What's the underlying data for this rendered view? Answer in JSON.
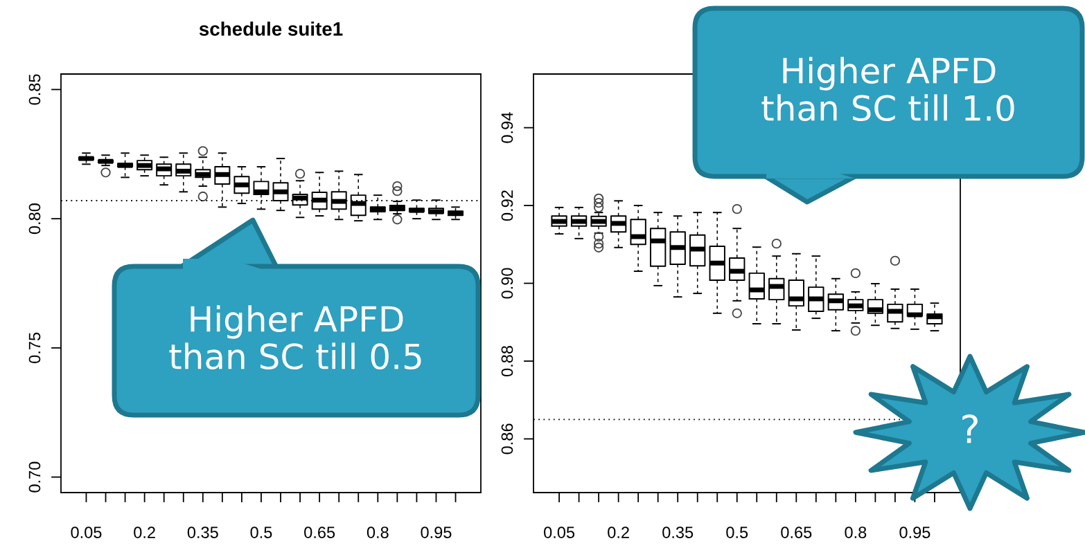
{
  "chart_data": [
    {
      "type": "box",
      "title": "schedule suite1",
      "categories": [
        "0.05",
        null,
        null,
        "0.2",
        null,
        null,
        "0.35",
        null,
        null,
        "0.5",
        null,
        null,
        "0.65",
        null,
        null,
        "0.8",
        null,
        null,
        "0.95",
        null
      ],
      "boxes": [
        {
          "low": 0.8211,
          "q1": 0.8228,
          "median": 0.8233,
          "q3": 0.8238,
          "high": 0.8254
        },
        {
          "low": 0.8206,
          "q1": 0.8217,
          "median": 0.8222,
          "q3": 0.8227,
          "high": 0.8246,
          "outliers": [
            0.8179
          ]
        },
        {
          "low": 0.816,
          "q1": 0.8201,
          "median": 0.8206,
          "q3": 0.8214,
          "high": 0.8254
        },
        {
          "low": 0.8166,
          "q1": 0.819,
          "median": 0.8206,
          "q3": 0.8225,
          "high": 0.8246
        },
        {
          "low": 0.8131,
          "q1": 0.8166,
          "median": 0.8193,
          "q3": 0.8211,
          "high": 0.8238
        },
        {
          "low": 0.8104,
          "q1": 0.8166,
          "median": 0.8184,
          "q3": 0.8211,
          "high": 0.8254
        },
        {
          "low": 0.8126,
          "q1": 0.816,
          "median": 0.8171,
          "q3": 0.819,
          "high": 0.8238,
          "outliers": [
            0.8262,
            0.8086
          ]
        },
        {
          "low": 0.8045,
          "q1": 0.8134,
          "median": 0.8171,
          "q3": 0.8201,
          "high": 0.8254
        },
        {
          "low": 0.8059,
          "q1": 0.8099,
          "median": 0.8131,
          "q3": 0.8163,
          "high": 0.8201
        },
        {
          "low": 0.8037,
          "q1": 0.8094,
          "median": 0.8104,
          "q3": 0.8144,
          "high": 0.8201
        },
        {
          "low": 0.8032,
          "q1": 0.807,
          "median": 0.8104,
          "q3": 0.8139,
          "high": 0.8233
        },
        {
          "low": 0.8005,
          "q1": 0.8053,
          "median": 0.808,
          "q3": 0.8094,
          "high": 0.8147,
          "outliers": [
            0.8174
          ]
        },
        {
          "low": 0.8011,
          "q1": 0.8037,
          "median": 0.8072,
          "q3": 0.8102,
          "high": 0.8179
        },
        {
          "low": 0.7997,
          "q1": 0.8037,
          "median": 0.8067,
          "q3": 0.8104,
          "high": 0.8184
        },
        {
          "low": 0.7992,
          "q1": 0.8013,
          "median": 0.8059,
          "q3": 0.8091,
          "high": 0.8171
        },
        {
          "low": 0.7997,
          "q1": 0.8027,
          "median": 0.8037,
          "q3": 0.8045,
          "high": 0.8091
        },
        {
          "low": 0.8019,
          "q1": 0.8032,
          "median": 0.804,
          "q3": 0.8051,
          "high": 0.8067,
          "outliers": [
            0.8126,
            0.8107,
            0.7997
          ]
        },
        {
          "low": 0.8,
          "q1": 0.8027,
          "median": 0.8032,
          "q3": 0.804,
          "high": 0.8072
        },
        {
          "low": 0.7997,
          "q1": 0.8021,
          "median": 0.8027,
          "q3": 0.804,
          "high": 0.8072
        },
        {
          "low": 0.7997,
          "q1": 0.8013,
          "median": 0.8021,
          "q3": 0.8029,
          "high": 0.8045
        }
      ],
      "ylim": [
        0.694,
        0.856
      ],
      "yticks": [
        {
          "value": 0.7,
          "label": "0.70"
        },
        {
          "value": 0.75,
          "label": "0.75"
        },
        {
          "value": 0.8,
          "label": "0.80"
        },
        {
          "value": 0.85,
          "label": "0.85"
        }
      ],
      "ref_lines": [
        {
          "axis": "y",
          "value": 0.807,
          "line_style": "dotted"
        }
      ],
      "annotations": [
        "Higher APFD\nthan SC till 0.5"
      ]
    },
    {
      "type": "box",
      "categories": [
        "0.05",
        null,
        null,
        "0.2",
        null,
        null,
        "0.35",
        null,
        null,
        "0.5",
        null,
        null,
        "0.65",
        null,
        null,
        "0.8",
        null,
        null,
        "0.95",
        null
      ],
      "boxes": [
        {
          "low": 0.9127,
          "q1": 0.9147,
          "median": 0.9159,
          "q3": 0.9173,
          "high": 0.9195
        },
        {
          "low": 0.9115,
          "q1": 0.9147,
          "median": 0.9159,
          "q3": 0.9173,
          "high": 0.9195
        },
        {
          "low": 0.9129,
          "q1": 0.9147,
          "median": 0.9159,
          "q3": 0.9172,
          "high": 0.9182,
          "outliers": [
            0.9218,
            0.9207,
            0.9195,
            0.912,
            0.9102,
            0.9092
          ]
        },
        {
          "low": 0.9092,
          "q1": 0.9132,
          "median": 0.9154,
          "q3": 0.9173,
          "high": 0.9212
        },
        {
          "low": 0.9031,
          "q1": 0.91,
          "median": 0.912,
          "q3": 0.9164,
          "high": 0.92
        },
        {
          "low": 0.8994,
          "q1": 0.9044,
          "median": 0.9109,
          "q3": 0.9141,
          "high": 0.9182
        },
        {
          "low": 0.8965,
          "q1": 0.9049,
          "median": 0.9092,
          "q3": 0.9132,
          "high": 0.9173
        },
        {
          "low": 0.8974,
          "q1": 0.9045,
          "median": 0.9088,
          "q3": 0.9124,
          "high": 0.9182
        },
        {
          "low": 0.8923,
          "q1": 0.9008,
          "median": 0.9052,
          "q3": 0.9095,
          "high": 0.9182
        },
        {
          "low": 0.8955,
          "q1": 0.9008,
          "median": 0.9031,
          "q3": 0.9065,
          "high": 0.9141,
          "outliers": [
            0.9191,
            0.8923
          ]
        },
        {
          "low": 0.8896,
          "q1": 0.896,
          "median": 0.8983,
          "q3": 0.9026,
          "high": 0.9093
        },
        {
          "low": 0.8896,
          "q1": 0.8958,
          "median": 0.8992,
          "q3": 0.9012,
          "high": 0.907,
          "outliers": [
            0.9102
          ]
        },
        {
          "low": 0.888,
          "q1": 0.8942,
          "median": 0.896,
          "q3": 0.9008,
          "high": 0.9076
        },
        {
          "low": 0.891,
          "q1": 0.8928,
          "median": 0.896,
          "q3": 0.899,
          "high": 0.907
        },
        {
          "low": 0.8878,
          "q1": 0.8932,
          "median": 0.8955,
          "q3": 0.8972,
          "high": 0.9012
        },
        {
          "low": 0.8898,
          "q1": 0.893,
          "median": 0.8942,
          "q3": 0.8958,
          "high": 0.8978,
          "outliers": [
            0.9026,
            0.8878
          ]
        },
        {
          "low": 0.8892,
          "q1": 0.8923,
          "median": 0.8932,
          "q3": 0.8958,
          "high": 0.8999
        },
        {
          "low": 0.8884,
          "q1": 0.8901,
          "median": 0.8928,
          "q3": 0.8946,
          "high": 0.8985,
          "outliers": [
            0.9058
          ]
        },
        {
          "low": 0.8882,
          "q1": 0.8916,
          "median": 0.8919,
          "q3": 0.8946,
          "high": 0.8985
        },
        {
          "low": 0.8878,
          "q1": 0.8896,
          "median": 0.8914,
          "q3": 0.8921,
          "high": 0.8949
        }
      ],
      "ylim": [
        0.8462,
        0.9538
      ],
      "yticks": [
        {
          "value": 0.86,
          "label": "0.86"
        },
        {
          "value": 0.88,
          "label": "0.88"
        },
        {
          "value": 0.9,
          "label": "0.90"
        },
        {
          "value": 0.92,
          "label": "0.92"
        },
        {
          "value": 0.94,
          "label": "0.94"
        }
      ],
      "ref_lines": [
        {
          "axis": "y",
          "value": 0.865,
          "line_style": "dotted"
        }
      ],
      "annotations": [
        "Higher APFD\nthan SC till 1.0",
        "?"
      ]
    }
  ]
}
